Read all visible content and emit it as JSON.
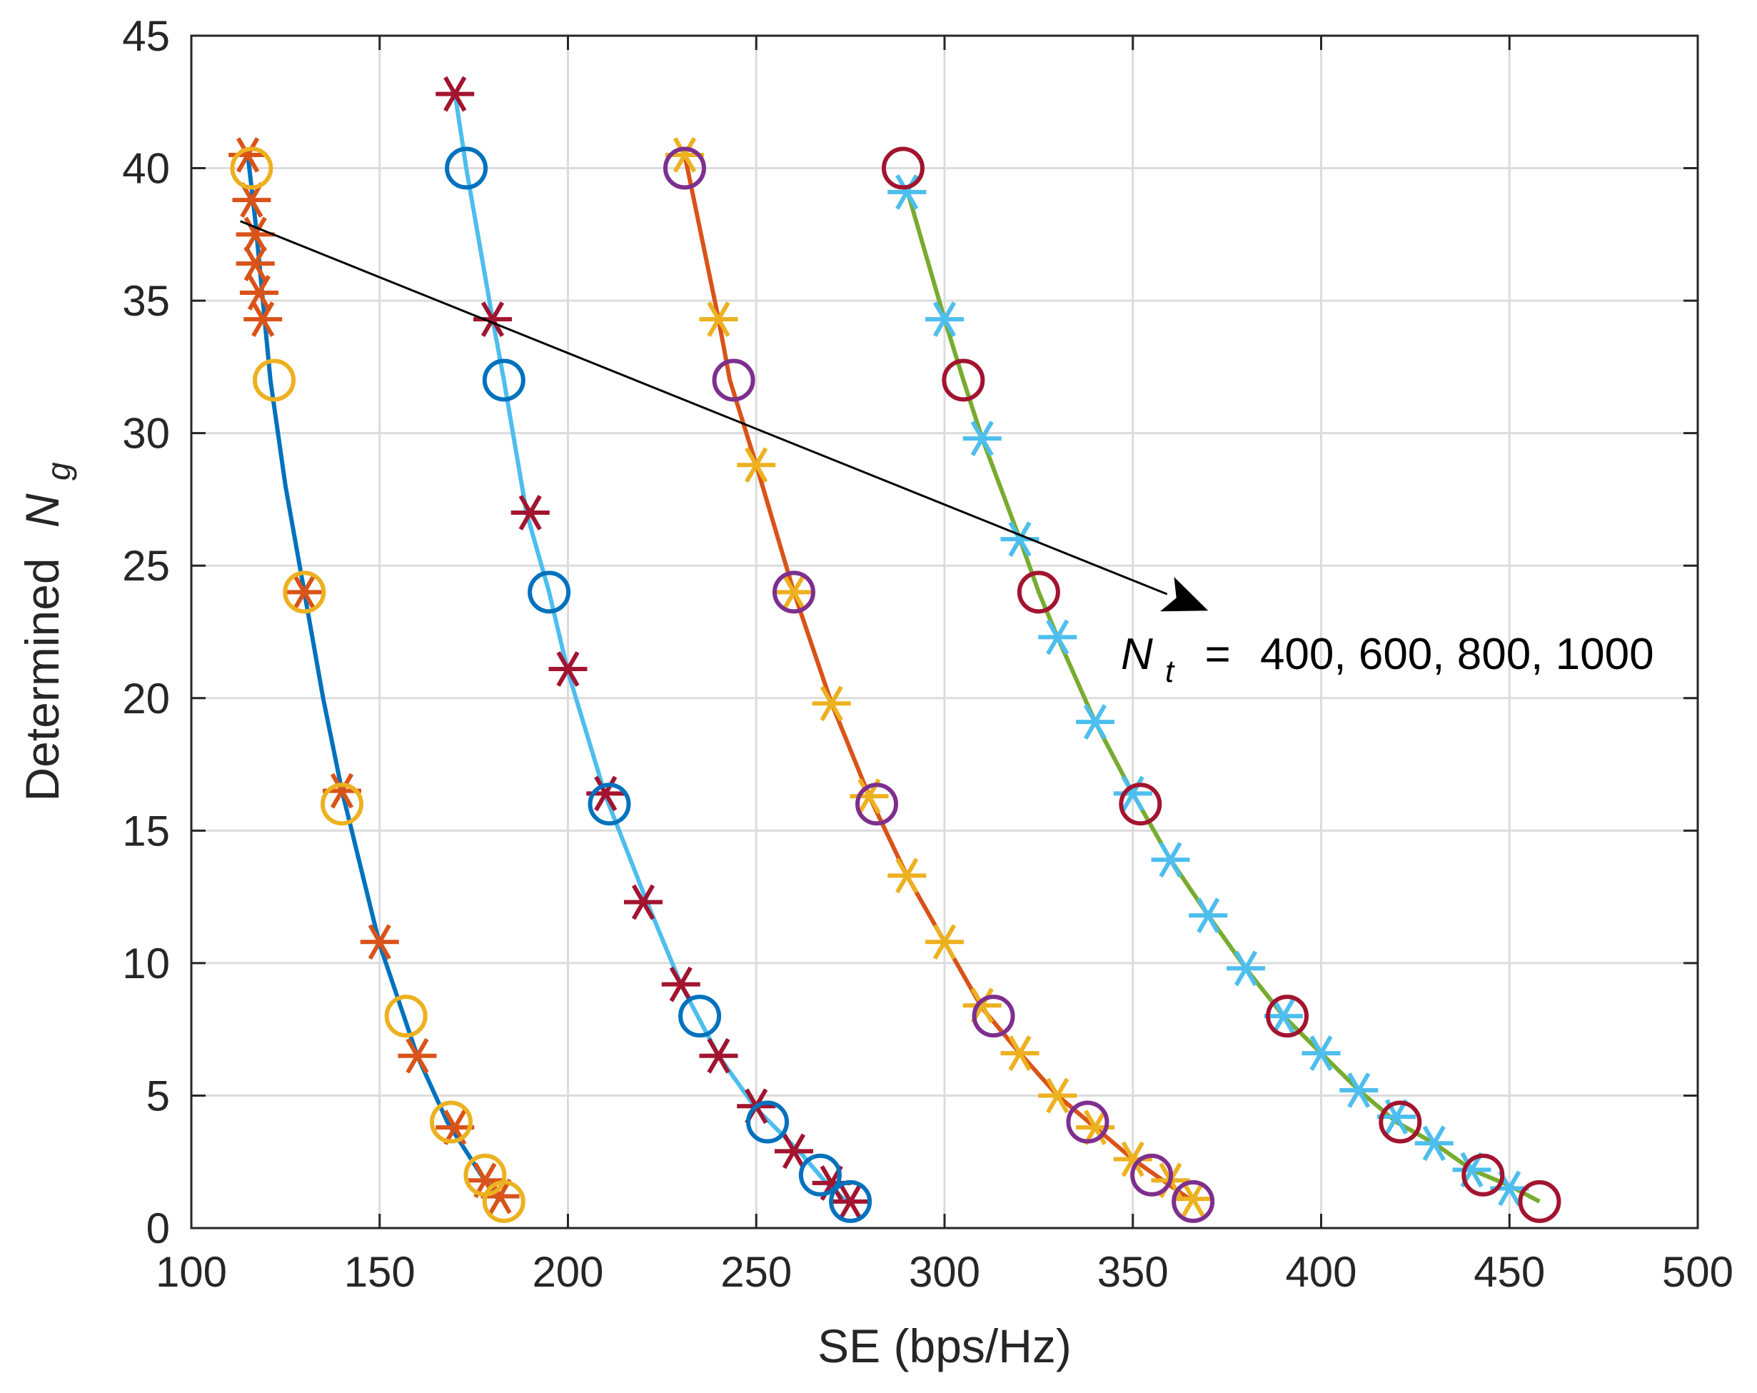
{
  "chart_data": {
    "type": "line",
    "title": "",
    "xlabel": "SE (bps/Hz)",
    "ylabel_prefix": "Determined",
    "ylabel_var": "N",
    "ylabel_sub": "g",
    "xlim": [
      100,
      500
    ],
    "ylim": [
      0,
      45
    ],
    "xticks": [
      100,
      150,
      200,
      250,
      300,
      350,
      400,
      450,
      500
    ],
    "yticks": [
      0,
      5,
      10,
      15,
      20,
      25,
      30,
      35,
      40,
      45
    ],
    "grid": true,
    "annotation": {
      "var": "N",
      "sub": "t",
      "eq": "=",
      "text": "400, 600, 800, 1000",
      "arrow_from": [
        113,
        38
      ],
      "arrow_to": [
        370,
        23.3
      ]
    },
    "series": [
      {
        "name": "Nt=400",
        "line_color": "#0072BD",
        "curve": [
          [
            115,
            40.5
          ],
          [
            117,
            38
          ],
          [
            119,
            35
          ],
          [
            121,
            32
          ],
          [
            125,
            28
          ],
          [
            130,
            24
          ],
          [
            135,
            20
          ],
          [
            140,
            16.5
          ],
          [
            150,
            10.7
          ],
          [
            160,
            6.5
          ],
          [
            168,
            4
          ],
          [
            177,
            2
          ],
          [
            182,
            1
          ]
        ],
        "marker_sets": [
          {
            "marker": "asterisk",
            "color": "#D95319",
            "points": [
              [
                115,
                40.5
              ],
              [
                116,
                38.8
              ],
              [
                117,
                37.5
              ],
              [
                117,
                36.4
              ],
              [
                118,
                35.3
              ],
              [
                119,
                34.3
              ],
              [
                130,
                24
              ],
              [
                140,
                16.5
              ],
              [
                150,
                10.8
              ],
              [
                160,
                6.5
              ],
              [
                170,
                3.8
              ],
              [
                178,
                1.8
              ],
              [
                182,
                1.2
              ]
            ]
          },
          {
            "marker": "circle",
            "color": "#EDB120",
            "points": [
              [
                116,
                40
              ],
              [
                122,
                32
              ],
              [
                130,
                24
              ],
              [
                140,
                16
              ],
              [
                157,
                8
              ],
              [
                169,
                4
              ],
              [
                178,
                2
              ],
              [
                183,
                1
              ]
            ]
          }
        ]
      },
      {
        "name": "Nt=600",
        "line_color": "#4DBEEE",
        "curve": [
          [
            170,
            42.8
          ],
          [
            173,
            40
          ],
          [
            180,
            34.3
          ],
          [
            183,
            32
          ],
          [
            189,
            27
          ],
          [
            195,
            24
          ],
          [
            200,
            21
          ],
          [
            210,
            16.3
          ],
          [
            221,
            12.3
          ],
          [
            230,
            9.2
          ],
          [
            240,
            6.5
          ],
          [
            250,
            4.5
          ],
          [
            255,
            3.8
          ],
          [
            262,
            2.8
          ],
          [
            268,
            1.8
          ],
          [
            274,
            1
          ]
        ],
        "marker_sets": [
          {
            "marker": "asterisk",
            "color": "#A2142F",
            "points": [
              [
                170,
                42.8
              ],
              [
                180,
                34.3
              ],
              [
                190,
                27
              ],
              [
                200,
                21.1
              ],
              [
                210,
                16.4
              ],
              [
                220,
                12.3
              ],
              [
                230,
                9.2
              ],
              [
                240,
                6.5
              ],
              [
                250,
                4.6
              ],
              [
                260,
                2.9
              ],
              [
                270,
                1.7
              ],
              [
                275,
                1.0
              ]
            ]
          },
          {
            "marker": "circle",
            "color": "#0072BD",
            "points": [
              [
                173,
                40
              ],
              [
                183,
                32
              ],
              [
                195,
                24
              ],
              [
                211,
                16
              ],
              [
                235,
                8
              ],
              [
                253,
                4
              ],
              [
                267,
                2
              ],
              [
                275,
                1
              ]
            ]
          }
        ]
      },
      {
        "name": "Nt=800",
        "line_color": "#D95319",
        "curve": [
          [
            231,
            40.5
          ],
          [
            240,
            34.3
          ],
          [
            243,
            32
          ],
          [
            250,
            28.8
          ],
          [
            260,
            24
          ],
          [
            270,
            19.8
          ],
          [
            280,
            16.3
          ],
          [
            290,
            13.3
          ],
          [
            300,
            10.8
          ],
          [
            310,
            8.3
          ],
          [
            320,
            6.6
          ],
          [
            330,
            5
          ],
          [
            340,
            3.8
          ],
          [
            350,
            2.6
          ],
          [
            356,
            2
          ],
          [
            365,
            1.1
          ]
        ],
        "marker_sets": [
          {
            "marker": "asterisk",
            "color": "#EDB120",
            "points": [
              [
                231,
                40.5
              ],
              [
                240,
                34.3
              ],
              [
                250,
                28.8
              ],
              [
                260,
                24
              ],
              [
                270,
                19.8
              ],
              [
                280,
                16.3
              ],
              [
                290,
                13.3
              ],
              [
                300,
                10.8
              ],
              [
                310,
                8.4
              ],
              [
                320,
                6.6
              ],
              [
                330,
                5.0
              ],
              [
                340,
                3.8
              ],
              [
                350,
                2.6
              ],
              [
                360,
                1.8
              ],
              [
                366,
                1.1
              ]
            ]
          },
          {
            "marker": "circle",
            "color": "#7E2F8E",
            "points": [
              [
                231,
                40
              ],
              [
                244,
                32
              ],
              [
                260,
                24
              ],
              [
                282,
                16
              ],
              [
                313,
                8
              ],
              [
                338,
                4
              ],
              [
                355,
                2
              ],
              [
                366,
                1
              ]
            ]
          }
        ]
      },
      {
        "name": "Nt=1000",
        "line_color": "#77AC30",
        "curve": [
          [
            290,
            39.2
          ],
          [
            300,
            34.3
          ],
          [
            305,
            32
          ],
          [
            310,
            29.8
          ],
          [
            320,
            26
          ],
          [
            325,
            24
          ],
          [
            330,
            22.3
          ],
          [
            340,
            19.1
          ],
          [
            350,
            16.4
          ],
          [
            360,
            13.9
          ],
          [
            370,
            11.8
          ],
          [
            380,
            9.8
          ],
          [
            390,
            8
          ],
          [
            400,
            6.6
          ],
          [
            410,
            5.2
          ],
          [
            420,
            4
          ],
          [
            430,
            3.2
          ],
          [
            440,
            2.2
          ],
          [
            450,
            1.6
          ],
          [
            458,
            1
          ]
        ],
        "marker_sets": [
          {
            "marker": "asterisk",
            "color": "#4DBEEE",
            "points": [
              [
                290,
                39.1
              ],
              [
                300,
                34.3
              ],
              [
                310,
                29.8
              ],
              [
                320,
                26
              ],
              [
                330,
                22.3
              ],
              [
                340,
                19.1
              ],
              [
                350,
                16.4
              ],
              [
                360,
                13.9
              ],
              [
                370,
                11.8
              ],
              [
                380,
                9.8
              ],
              [
                390,
                8.0
              ],
              [
                400,
                6.6
              ],
              [
                410,
                5.2
              ],
              [
                420,
                4.2
              ],
              [
                430,
                3.2
              ],
              [
                440,
                2.2
              ],
              [
                450,
                1.5
              ]
            ]
          },
          {
            "marker": "circle",
            "color": "#A2142F",
            "points": [
              [
                289,
                40
              ],
              [
                305,
                32
              ],
              [
                325,
                24
              ],
              [
                352,
                16
              ],
              [
                391,
                8
              ],
              [
                421,
                4
              ],
              [
                443,
                2
              ],
              [
                458,
                1
              ]
            ]
          }
        ]
      }
    ]
  }
}
